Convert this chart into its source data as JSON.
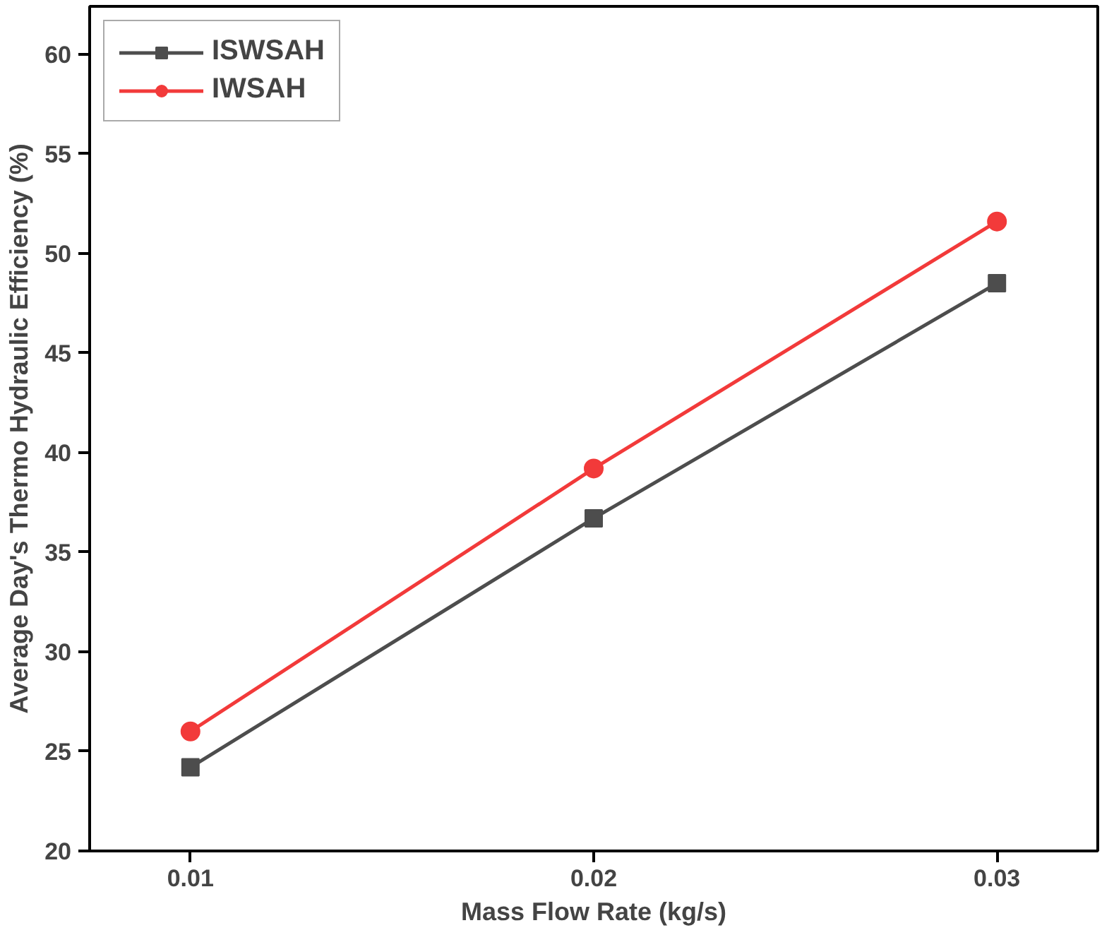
{
  "chart_data": {
    "type": "line",
    "xlabel": "Mass Flow Rate (kg/s)",
    "ylabel": "Average Day's Thermo Hydraulic Efficiency (%)",
    "x": [
      0.01,
      0.02,
      0.03
    ],
    "series": [
      {
        "name": "ISWSAH",
        "color": "#4d4d4d",
        "values": [
          24.2,
          36.7,
          48.5
        ],
        "marker": "square"
      },
      {
        "name": "IWSAH",
        "color": "#f23a3a",
        "values": [
          26.0,
          39.2,
          51.6
        ],
        "marker": "circle"
      }
    ],
    "xlim": [
      0.0075,
      0.0325
    ],
    "xticks": [
      0.01,
      0.02,
      0.03
    ],
    "ylim": [
      20,
      62.4
    ],
    "yticks": [
      20,
      25,
      30,
      35,
      40,
      45,
      50,
      55,
      60
    ],
    "grid": false,
    "legend": "top left",
    "line_style": "solid"
  }
}
